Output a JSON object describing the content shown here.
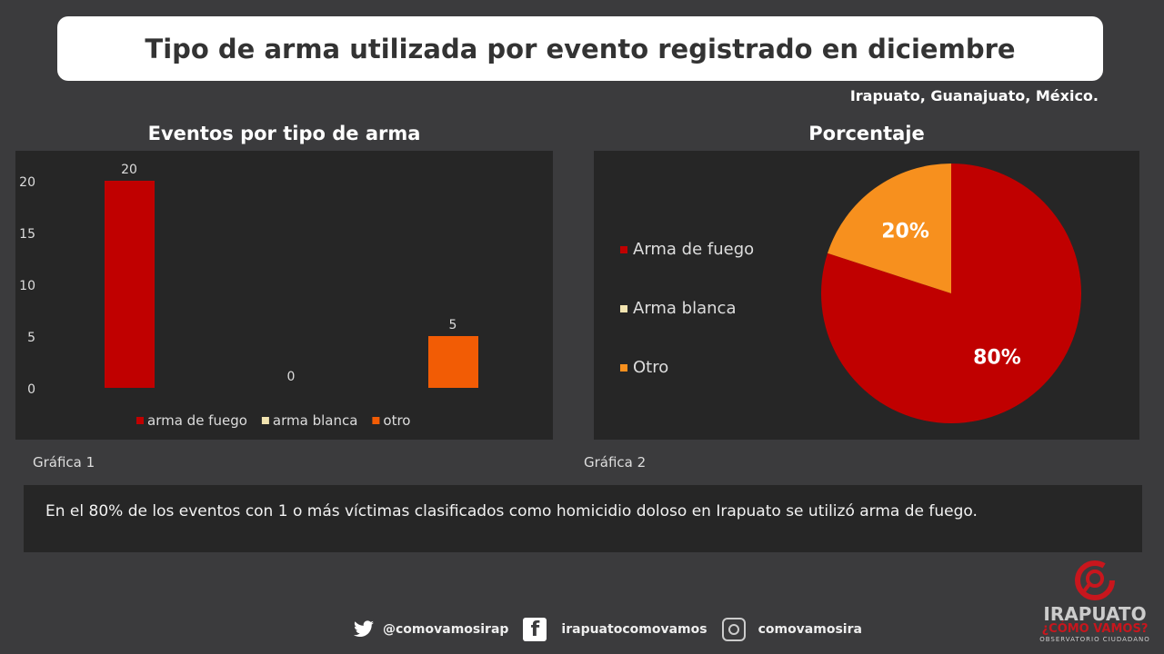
{
  "title": "Tipo de arma utilizada por evento registrado en diciembre",
  "location": "Irapuato, Guanajuato, México.",
  "chart_data": [
    {
      "type": "bar",
      "title": "Eventos por tipo de arma",
      "categories": [
        "arma de fuego",
        "arma blanca",
        "otro"
      ],
      "values": [
        20,
        0,
        5
      ],
      "colors": [
        "#c00000",
        "#f2e4b0",
        "#f25c05"
      ],
      "yticks": [
        0,
        5,
        10,
        15,
        20
      ],
      "ylim": [
        0,
        20
      ],
      "legend": "bottom",
      "caption": "Gráfica 1"
    },
    {
      "type": "pie",
      "title": "Porcentaje",
      "labels": [
        "Arma de fuego",
        "Arma blanca",
        "Otro"
      ],
      "values": [
        80,
        0,
        20
      ],
      "data_labels": [
        "80%",
        "",
        "20%"
      ],
      "colors": [
        "#c00000",
        "#f2e4b0",
        "#f7901e"
      ],
      "legend": "left",
      "caption": "Gráfica 2"
    }
  ],
  "note": "En el 80% de los eventos con 1 o más víctimas clasificados como homicidio doloso en Irapuato se utilizó arma de fuego.",
  "social": {
    "twitter": "@comovamosirap",
    "facebook": "irapuatocomovamos",
    "instagram": "comovamosira"
  },
  "logo": {
    "line1": "IRAPUATO",
    "line2": "¿CÓMO VAMOS?",
    "line3": "OBSERVATORIO CIUDADANO"
  }
}
